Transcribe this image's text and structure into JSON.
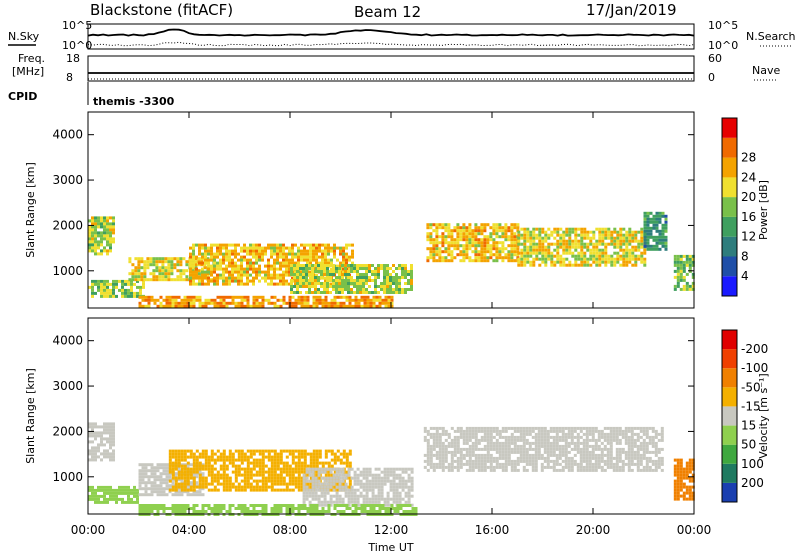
{
  "header": {
    "title": "Blackstone (fitACF)",
    "beam": "Beam 12",
    "date": "17/Jan/2019"
  },
  "status_panels": {
    "nsky_label": "N.Sky",
    "nsearch_label": "N.Search",
    "freq_label_1": "Freq.",
    "freq_label_2": "[MHz]",
    "nave_label": "Nave",
    "cpid_label": "CPID",
    "cpid_value": "themis -3300",
    "noise_ticks_left": [
      "10^5",
      "10^0"
    ],
    "noise_ticks_right": [
      "10^5",
      "10^0"
    ],
    "freq_ticks": [
      "18",
      "8"
    ],
    "nave_ticks": [
      "60",
      "0"
    ]
  },
  "chart_data": [
    {
      "type": "heatmap",
      "name": "power",
      "ylabel": "Slant Range [km]",
      "ylim": [
        180,
        4500
      ],
      "yticks": [
        1000,
        2000,
        3000,
        4000
      ],
      "xlim": [
        0,
        24
      ],
      "colorbar": {
        "label": "Power [dB]",
        "ticks": [
          "4",
          "8",
          "12",
          "16",
          "20",
          "24",
          "28"
        ],
        "colors": [
          "#1a1aff",
          "#1f4fa8",
          "#2e7d7d",
          "#3f9f5f",
          "#79c04a",
          "#f0e030",
          "#f4a300",
          "#f06a00",
          "#e60000"
        ]
      },
      "regions": [
        {
          "t0": 0.0,
          "t1": 1.0,
          "r0": 1400,
          "r1": 2200,
          "level": 20
        },
        {
          "t0": 0.0,
          "t1": 2.2,
          "r0": 450,
          "r1": 800,
          "level": 18
        },
        {
          "t0": 1.6,
          "t1": 5.0,
          "r0": 800,
          "r1": 1300,
          "level": 22
        },
        {
          "t0": 4.0,
          "t1": 10.5,
          "r0": 700,
          "r1": 1600,
          "level": 24
        },
        {
          "t0": 8.0,
          "t1": 12.8,
          "r0": 550,
          "r1": 1150,
          "level": 20
        },
        {
          "t0": 2.0,
          "t1": 12.0,
          "r0": 220,
          "r1": 450,
          "level": 27
        },
        {
          "t0": 13.4,
          "t1": 17.0,
          "r0": 1200,
          "r1": 2050,
          "level": 24
        },
        {
          "t0": 17.0,
          "t1": 22.0,
          "r0": 1100,
          "r1": 1950,
          "level": 22
        },
        {
          "t0": 22.0,
          "t1": 22.9,
          "r0": 1500,
          "r1": 2300,
          "level": 12
        },
        {
          "t0": 23.2,
          "t1": 24.0,
          "r0": 600,
          "r1": 1350,
          "level": 18
        }
      ]
    },
    {
      "type": "heatmap",
      "name": "velocity",
      "ylabel": "Slant Range [km]",
      "xlabel": "Time UT",
      "ylim": [
        180,
        4500
      ],
      "yticks": [
        1000,
        2000,
        3000,
        4000
      ],
      "xlim": [
        0,
        24
      ],
      "xticks": [
        "00:00",
        "04:00",
        "08:00",
        "12:00",
        "16:00",
        "20:00",
        "00:00"
      ],
      "colorbar": {
        "label": "Velocity [m s⁻¹]",
        "ticks": [
          "200",
          "100",
          "50",
          "15",
          "-15",
          "-50",
          "-100",
          "-200"
        ],
        "colors": [
          "#1a3fb0",
          "#1f7a60",
          "#3fa83f",
          "#8fd04f",
          "#c8c8c0",
          "#f4b000",
          "#f08000",
          "#f04000",
          "#e00000"
        ]
      },
      "regions": [
        {
          "t0": 0.0,
          "t1": 1.0,
          "r0": 1400,
          "r1": 2200,
          "level": -10
        },
        {
          "t0": 0.0,
          "t1": 2.0,
          "r0": 450,
          "r1": 800,
          "level": 40
        },
        {
          "t0": 2.0,
          "t1": 4.5,
          "r0": 600,
          "r1": 1300,
          "level": -10
        },
        {
          "t0": 3.2,
          "t1": 10.4,
          "r0": 700,
          "r1": 1600,
          "level": -40
        },
        {
          "t0": 8.5,
          "t1": 12.8,
          "r0": 400,
          "r1": 1200,
          "level": -10
        },
        {
          "t0": 13.3,
          "t1": 22.8,
          "r0": 1150,
          "r1": 2100,
          "level": -10
        },
        {
          "t0": 2.0,
          "t1": 13.0,
          "r0": 200,
          "r1": 400,
          "level": 30
        },
        {
          "t0": 23.2,
          "t1": 24.0,
          "r0": 500,
          "r1": 1400,
          "level": -80
        }
      ]
    }
  ]
}
